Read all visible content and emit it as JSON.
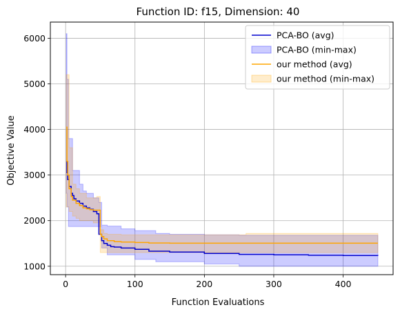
{
  "chart_data": {
    "type": "line",
    "title": "Function ID: f15, Dimension: 40",
    "xlabel": "Function Evaluations",
    "ylabel": "Objective Value",
    "xlim": [
      -22,
      472
    ],
    "ylim": [
      815,
      6355
    ],
    "xticks": [
      0,
      100,
      200,
      300,
      400
    ],
    "yticks": [
      1000,
      2000,
      3000,
      4000,
      5000,
      6000
    ],
    "grid": true,
    "legend_position": "top-right",
    "series": [
      {
        "name": "PCA-BO (avg)",
        "kind": "line",
        "color": "#0000cd",
        "x": [
          1,
          2,
          3,
          5,
          8,
          10,
          12,
          15,
          20,
          25,
          30,
          35,
          40,
          45,
          48,
          52,
          55,
          60,
          65,
          70,
          80,
          100,
          120,
          150,
          200,
          250,
          300,
          350,
          400,
          450
        ],
        "y": [
          3300,
          3050,
          2900,
          2750,
          2600,
          2550,
          2480,
          2430,
          2380,
          2320,
          2280,
          2250,
          2200,
          2150,
          1700,
          1560,
          1500,
          1460,
          1430,
          1420,
          1400,
          1370,
          1330,
          1310,
          1280,
          1260,
          1250,
          1240,
          1235,
          1230
        ]
      },
      {
        "name": "PCA-BO (min-max)",
        "kind": "band",
        "color": "#0000ff",
        "opacity": 0.2,
        "x": [
          1,
          2,
          4,
          6,
          10,
          15,
          20,
          25,
          30,
          40,
          45,
          48,
          52,
          60,
          80,
          100,
          130,
          150,
          200,
          250,
          300,
          400,
          450
        ],
        "upper": [
          6100,
          5100,
          3800,
          3800,
          3100,
          3100,
          2800,
          2650,
          2600,
          2500,
          2500,
          2400,
          1900,
          1880,
          1820,
          1780,
          1720,
          1700,
          1690,
          1680,
          1680,
          1680,
          1680
        ],
        "lower": [
          2600,
          2300,
          1870,
          1870,
          1870,
          1870,
          1870,
          1870,
          1870,
          1870,
          1870,
          1870,
          1400,
          1250,
          1250,
          1150,
          1100,
          1100,
          1050,
          1000,
          1000,
          1000,
          1000
        ]
      },
      {
        "name": "our method (avg)",
        "kind": "line",
        "color": "#ffa500",
        "x": [
          1,
          2,
          3,
          5,
          8,
          10,
          15,
          20,
          25,
          30,
          35,
          40,
          45,
          49,
          50,
          52,
          55,
          60,
          70,
          80,
          100,
          120,
          150,
          200,
          300,
          400,
          450
        ],
        "y": [
          4050,
          3300,
          3000,
          2700,
          2530,
          2450,
          2380,
          2330,
          2280,
          2260,
          2240,
          2230,
          2230,
          2230,
          1700,
          1650,
          1600,
          1560,
          1540,
          1530,
          1520,
          1510,
          1505,
          1505,
          1505,
          1505,
          1505
        ]
      },
      {
        "name": "our method (min-max)",
        "kind": "band",
        "color": "#ffa500",
        "opacity": 0.2,
        "x": [
          1,
          3,
          5,
          10,
          15,
          20,
          30,
          40,
          45,
          48,
          50,
          55,
          60,
          80,
          100,
          150,
          200,
          255,
          260,
          300,
          400,
          450
        ],
        "upper": [
          5200,
          5200,
          3600,
          2800,
          2700,
          2600,
          2500,
          2500,
          2530,
          2530,
          1800,
          1720,
          1700,
          1690,
          1690,
          1690,
          1690,
          1690,
          1720,
          1720,
          1720,
          1720
        ],
        "lower": [
          2300,
          2300,
          2200,
          2100,
          2050,
          2000,
          2000,
          1950,
          1950,
          1950,
          1300,
          1300,
          1300,
          1300,
          1300,
          1300,
          1300,
          1300,
          1300,
          1300,
          1300,
          1300
        ]
      }
    ]
  }
}
